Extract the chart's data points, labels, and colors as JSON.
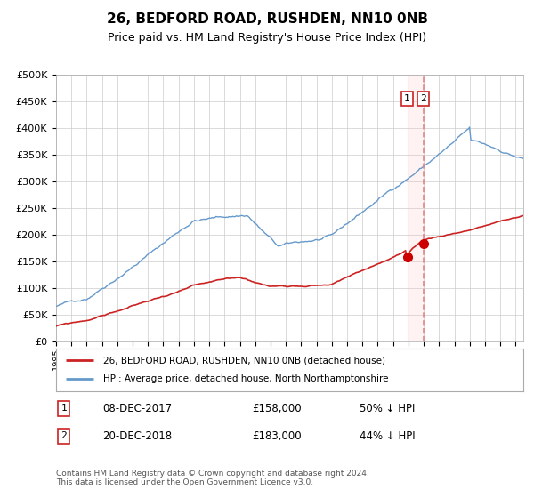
{
  "title": "26, BEDFORD ROAD, RUSHDEN, NN10 0NB",
  "subtitle": "Price paid vs. HM Land Registry's House Price Index (HPI)",
  "legend_line1": "26, BEDFORD ROAD, RUSHDEN, NN10 0NB (detached house)",
  "legend_line2": "HPI: Average price, detached house, North Northamptonshire",
  "sale1_date": "08-DEC-2017",
  "sale1_price": 158000,
  "sale1_label": "50% ↓ HPI",
  "sale2_date": "20-DEC-2018",
  "sale2_price": 183000,
  "sale2_label": "44% ↓ HPI",
  "footer": "Contains HM Land Registry data © Crown copyright and database right 2024.\nThis data is licensed under the Open Government Licence v3.0.",
  "hpi_color": "#6699cc",
  "price_color": "#cc2222",
  "sale_marker_color": "#cc0000",
  "ylim": [
    0,
    500000
  ],
  "year_start": 1995,
  "year_end": 2025,
  "sale1_year": 2017.92,
  "sale2_year": 2018.97
}
